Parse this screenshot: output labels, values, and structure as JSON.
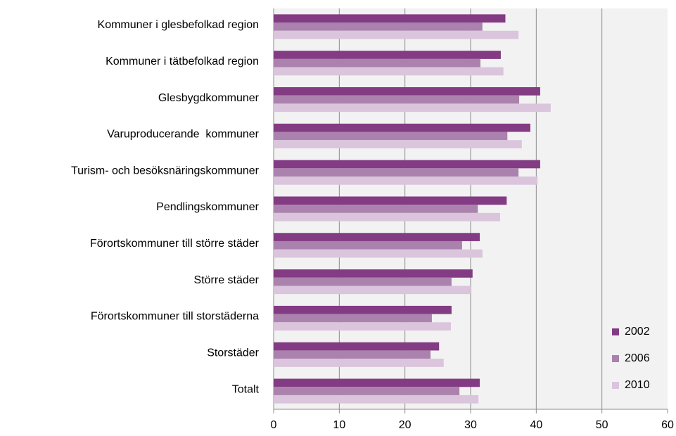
{
  "chart_data": {
    "type": "bar",
    "orientation": "horizontal",
    "categories": [
      "Kommuner i glesbefolkad region",
      "Kommuner i tätbefolkad region",
      "Glesbygdkommuner",
      "Varuproducerande  kommuner",
      "Turism- och besöksnäringskommuner",
      "Pendlingskommuner",
      "Förortskommuner till större städer",
      "Större städer",
      "Förortskommuner till storstäderna",
      "Storstäder",
      "Totalt"
    ],
    "series": [
      {
        "name": "2002",
        "color": "#833c84",
        "values": [
          35.3,
          34.6,
          40.6,
          39.1,
          40.6,
          35.5,
          31.4,
          30.3,
          27.1,
          25.2,
          31.4
        ]
      },
      {
        "name": "2006",
        "color": "#ab82ad",
        "values": [
          31.8,
          31.5,
          37.4,
          35.6,
          37.3,
          31.1,
          28.7,
          27.1,
          24.1,
          23.9,
          28.3
        ]
      },
      {
        "name": "2010",
        "color": "#dac5dc",
        "values": [
          37.3,
          35.0,
          42.2,
          37.8,
          40.2,
          34.5,
          31.8,
          30.0,
          27.0,
          25.9,
          31.2
        ]
      }
    ],
    "xlim": [
      0,
      60
    ],
    "xticks": [
      0,
      10,
      20,
      30,
      40,
      50,
      60
    ],
    "grid": true,
    "legend": "lower right"
  }
}
